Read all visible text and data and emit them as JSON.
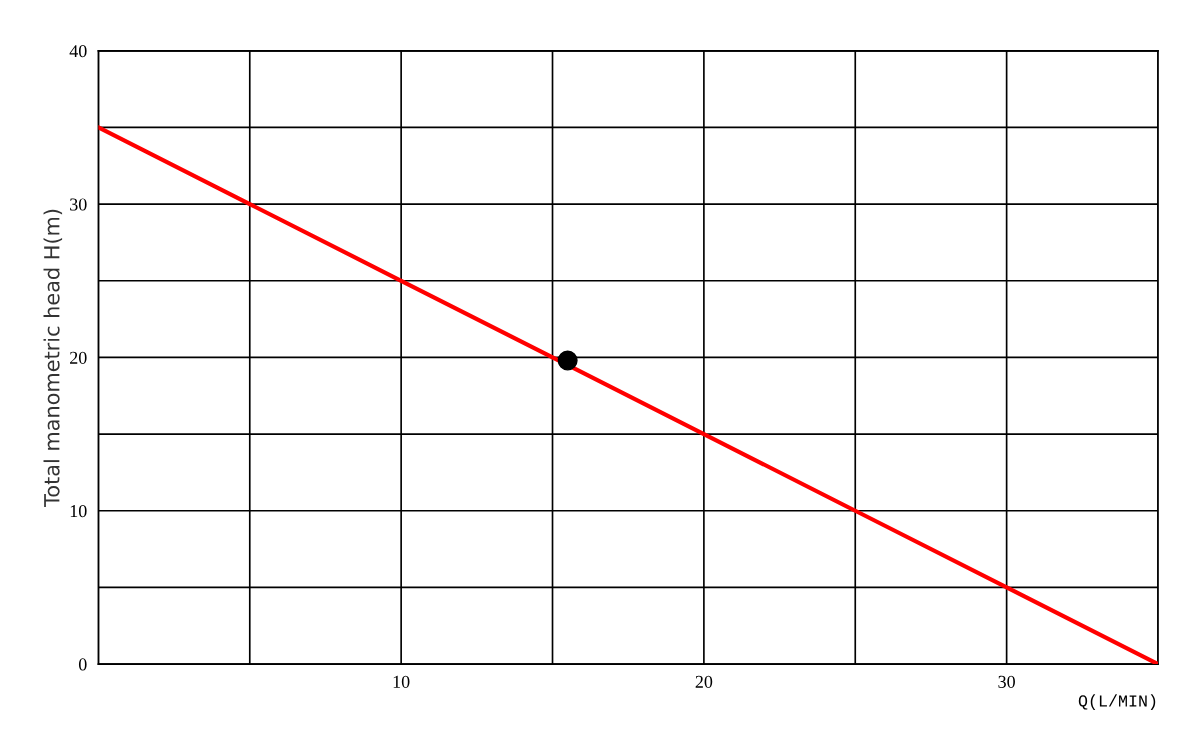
{
  "chart_data": {
    "type": "line",
    "xlabel": "Q(L/MIN)",
    "ylabel": "Total manometric head H(m)",
    "series": [
      {
        "color": "#ff0000",
        "x": [
          0,
          5,
          10,
          15,
          20,
          25,
          30,
          35
        ],
        "values": [
          35,
          30,
          25,
          20,
          15,
          10,
          5,
          0
        ]
      },
      {
        "type": "scatter",
        "color": "#000000",
        "marker": "circle",
        "x": [
          15.5
        ],
        "values": [
          19.8
        ]
      }
    ],
    "xlim": [
      0,
      35
    ],
    "ylim": [
      0,
      40
    ],
    "xticks": [
      {
        "value": 0,
        "label": null
      },
      {
        "value": 5,
        "label": null
      },
      10,
      {
        "value": 15,
        "label": null
      },
      20,
      {
        "value": 25,
        "label": null
      },
      30,
      {
        "value": 35,
        "label": null
      }
    ],
    "yticks": [
      0,
      {
        "value": 5,
        "label": null
      },
      10,
      {
        "value": 15,
        "label": null
      },
      20,
      {
        "value": 25,
        "label": null
      },
      30,
      {
        "value": 35,
        "label": null
      },
      40
    ],
    "grid": true
  }
}
